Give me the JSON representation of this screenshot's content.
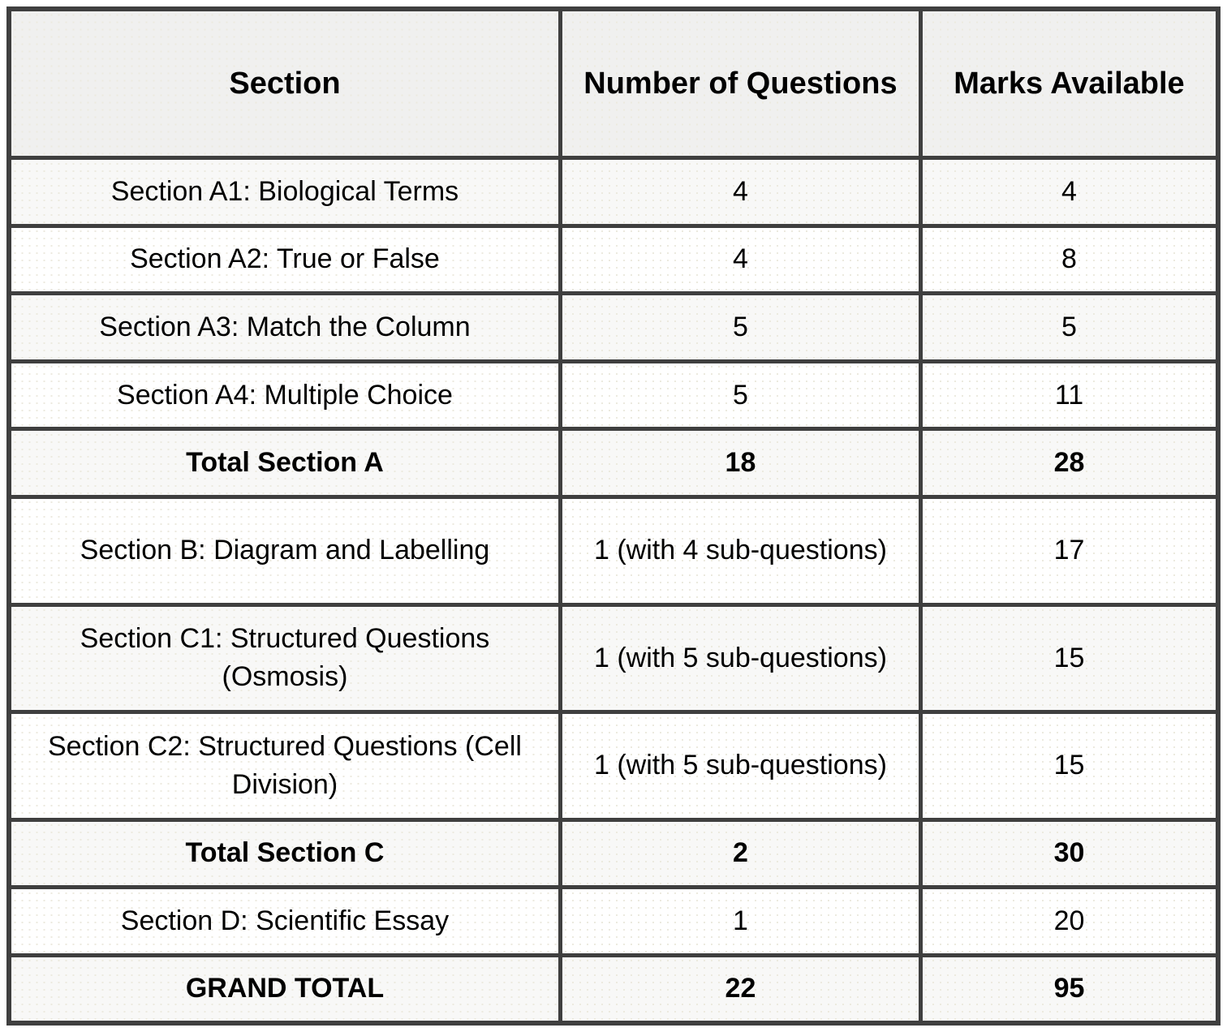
{
  "table": {
    "columns": [
      {
        "label": "Section"
      },
      {
        "label": "Number of Questions"
      },
      {
        "label": "Marks Available"
      }
    ],
    "rows": [
      {
        "section": "Section A1: Biological Terms",
        "questions": "4",
        "marks": "4",
        "total": false,
        "shaded": true
      },
      {
        "section": "Section A2: True or False",
        "questions": "4",
        "marks": "8",
        "total": false,
        "shaded": false
      },
      {
        "section": "Section A3: Match the Column",
        "questions": "5",
        "marks": "5",
        "total": false,
        "shaded": true
      },
      {
        "section": "Section A4: Multiple Choice",
        "questions": "5",
        "marks": "11",
        "total": false,
        "shaded": false
      },
      {
        "section": "Total Section A",
        "questions": "18",
        "marks": "28",
        "total": true,
        "shaded": true
      },
      {
        "section": "Section B: Diagram and Labelling",
        "questions": "1 (with 4 sub-questions)",
        "marks": "17",
        "total": false,
        "shaded": false
      },
      {
        "section": "Section C1: Structured Questions (Osmosis)",
        "questions": "1 (with 5 sub-questions)",
        "marks": "15",
        "total": false,
        "shaded": true
      },
      {
        "section": "Section C2: Structured Questions (Cell Division)",
        "questions": "1 (with 5 sub-questions)",
        "marks": "15",
        "total": false,
        "shaded": false
      },
      {
        "section": "Total Section C",
        "questions": "2",
        "marks": "30",
        "total": true,
        "shaded": true
      },
      {
        "section": "Section D: Scientific Essay",
        "questions": "1",
        "marks": "20",
        "total": false,
        "shaded": false
      },
      {
        "section": "GRAND TOTAL",
        "questions": "22",
        "marks": "95",
        "total": true,
        "shaded": true
      }
    ]
  }
}
